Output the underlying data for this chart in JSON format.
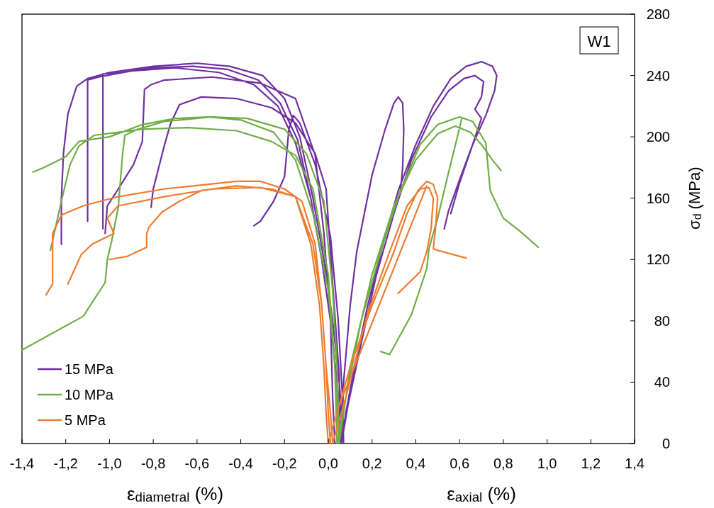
{
  "chart_data": {
    "type": "line",
    "xlabel": "ε$_{diametral}$ (%)",
    "ylabel": "σ$_{d}$ (MPa)",
    "annotations": [
      "W1",
      "ε$_{axial}$ (%)"
    ],
    "xlim": [
      -1.4,
      1.4
    ],
    "ylim": [
      0,
      280
    ],
    "xticks": [
      {
        "value": -1.4,
        "label": "-1,4"
      },
      {
        "value": -1.2,
        "label": "-1,2"
      },
      {
        "value": -1.0,
        "label": "-1,0"
      },
      {
        "value": -0.8,
        "label": "-0,8"
      },
      {
        "value": -0.6,
        "label": "-0,6"
      },
      {
        "value": -0.4,
        "label": "-0,4"
      },
      {
        "value": -0.2,
        "label": "-0,2"
      },
      {
        "value": 0,
        "label": "0,0"
      },
      {
        "value": 0.2,
        "label": "0,2"
      },
      {
        "value": 0.4,
        "label": "0,4"
      },
      {
        "value": 0.6,
        "label": "0,6"
      },
      {
        "value": 0.8,
        "label": "0,8"
      },
      {
        "value": 1.0,
        "label": "1,0"
      },
      {
        "value": 1.2,
        "label": "1,2"
      },
      {
        "value": 1.4,
        "label": "1,4"
      }
    ],
    "yticks": [
      0,
      40,
      80,
      120,
      160,
      200,
      240,
      280
    ],
    "legend": "bottom left",
    "line_style": "solid",
    "series": [
      {
        "name": "15 MPa",
        "color": "#7030a0",
        "x": [
          0.07,
          0.05,
          0.02,
          -0.02,
          -0.07,
          -0.13,
          -0.2,
          -0.3,
          -0.45,
          -0.6,
          -0.8,
          -1.0,
          -1.1,
          -1.15,
          -1.19,
          -1.21,
          -1.22,
          -1.22,
          null,
          0.06,
          0.04,
          0.01,
          -0.03,
          -0.08,
          -0.14,
          -0.22,
          -0.32,
          -0.46,
          -0.62,
          -0.8,
          -0.95,
          -1.03,
          -1.03,
          null,
          0.06,
          0.04,
          0.01,
          -0.03,
          -0.08,
          -0.15,
          -0.23,
          -0.34,
          -0.5,
          -0.7,
          -0.9,
          -1.05,
          -1.1,
          -1.1,
          null,
          0.03,
          0.02,
          0.01,
          -0.02,
          -0.06,
          -0.15,
          -0.31,
          -0.53,
          -0.75,
          -0.81,
          -0.84,
          -0.85,
          -0.89,
          -0.96,
          -1.01,
          -1.02,
          null,
          0.055,
          0.05,
          0.02,
          -0.01,
          -0.06,
          -0.15,
          -0.26,
          -0.42,
          -0.58,
          -0.68,
          -0.72,
          -0.75,
          -0.8,
          -0.81,
          null,
          0.07,
          0.065,
          0.045,
          0.01,
          -0.06,
          -0.13,
          -0.16,
          -0.18,
          -0.2,
          -0.25,
          -0.31,
          -0.34,
          null,
          0.06,
          0.07,
          0.1,
          0.13,
          0.2,
          0.26,
          0.3,
          0.32,
          0.34,
          0.345,
          0.34,
          0.33,
          0.31,
          null,
          0.06,
          0.08,
          0.12,
          0.18,
          0.25,
          0.32,
          0.4,
          0.48,
          0.56,
          0.63,
          0.7,
          0.75,
          0.77,
          0.76,
          0.72,
          0.66,
          0.6,
          0.55,
          0.53,
          null,
          0.06,
          0.09,
          0.15,
          0.22,
          0.3,
          0.38,
          0.47,
          0.55,
          0.62,
          0.67,
          0.71,
          0.7,
          0.67,
          0.7,
          0.66,
          0.6,
          0.56
        ],
        "values": [
          0,
          40,
          80,
          120,
          160,
          200,
          225,
          240,
          246,
          248,
          246,
          242,
          238,
          233,
          215,
          190,
          160,
          130,
          null,
          0,
          40,
          80,
          120,
          160,
          198,
          222,
          237,
          244,
          246,
          245,
          242,
          241,
          140,
          null,
          0,
          40,
          80,
          120,
          160,
          196,
          220,
          234,
          242,
          245,
          243,
          239,
          237,
          145,
          null,
          0,
          30,
          81,
          137,
          188,
          225,
          235,
          239,
          237,
          234,
          231,
          197,
          182,
          166,
          155,
          137,
          null,
          0,
          44,
          104,
          166,
          189,
          209,
          219,
          225,
          226,
          221,
          209,
          194,
          166,
          154,
          null,
          0,
          30,
          81,
          135,
          182,
          209,
          214,
          205,
          174,
          158,
          145,
          142,
          null,
          0,
          40,
          90,
          125,
          175,
          205,
          222,
          226,
          222,
          205,
          180,
          165,
          156,
          null,
          0,
          20,
          50,
          90,
          130,
          165,
          195,
          220,
          238,
          246,
          249,
          246,
          240,
          230,
          214,
          195,
          172,
          152,
          140,
          null,
          0,
          25,
          65,
          110,
          150,
          185,
          213,
          230,
          238,
          240,
          236,
          226,
          218,
          212,
          195,
          170,
          150
        ]
      },
      {
        "name": "10 MPa",
        "color": "#70ad47",
        "x": [
          0.05,
          0.03,
          0.0,
          -0.07,
          -0.15,
          -0.25,
          -0.4,
          -0.55,
          -0.7,
          -0.85,
          -1.0,
          -1.14,
          -1.2,
          -1.3,
          -1.35,
          null,
          0.04,
          0.03,
          0.0,
          -0.07,
          -0.15,
          -0.26,
          -0.42,
          -0.64,
          -0.85,
          -1.07,
          -1.14,
          -1.18,
          -1.22,
          -1.27,
          null,
          0.05,
          0.04,
          0.02,
          -0.02,
          -0.1,
          -0.2,
          -0.37,
          -0.53,
          -0.75,
          -0.87,
          -0.93,
          -0.94,
          -0.96,
          -0.99,
          -1.01,
          -1.02,
          -1.12,
          -1.4,
          null,
          0.04,
          0.08,
          0.15,
          0.25,
          0.33,
          0.42,
          0.5,
          0.6,
          0.66,
          0.72,
          0.74,
          0.8,
          0.88,
          0.96,
          null,
          0.05,
          0.1,
          0.2,
          0.3,
          0.4,
          0.5,
          0.58,
          0.65,
          0.7,
          0.75,
          0.79,
          null,
          0.24,
          0.28,
          0.38,
          0.45,
          0.46,
          0.5,
          0.55,
          0.59,
          0.61
        ],
        "values": [
          0,
          50,
          100,
          150,
          185,
          203,
          211,
          213,
          212,
          208,
          200,
          197,
          187,
          180,
          177,
          null,
          0,
          50,
          110,
          166,
          188,
          197,
          204,
          206,
          205,
          201,
          194,
          182,
          158,
          126,
          null,
          0,
          50,
          100,
          158,
          189,
          205,
          212,
          213,
          210,
          205,
          201,
          189,
          154,
          132,
          120,
          105,
          83,
          61,
          null,
          0,
          30,
          80,
          130,
          165,
          195,
          208,
          213,
          210,
          196,
          165,
          147,
          138,
          128,
          null,
          0,
          50,
          110,
          155,
          185,
          202,
          207,
          203,
          195,
          185,
          178,
          null,
          60,
          58,
          84,
          114,
          127,
          147,
          177,
          200,
          212
        ]
      },
      {
        "name": "5 MPa",
        "color": "#ed7d31",
        "x": [
          0.01,
          0.0,
          -0.01,
          -0.03,
          -0.06,
          -0.12,
          -0.2,
          -0.31,
          -0.42,
          -0.75,
          -0.96,
          -1.12,
          -1.22,
          -1.26,
          -1.26,
          -1.26,
          -1.29,
          null,
          0.0,
          -0.01,
          -0.02,
          -0.04,
          -0.08,
          -0.15,
          -0.31,
          -0.53,
          -0.75,
          -0.96,
          -1.01,
          -0.98,
          -1.08,
          -1.13,
          -1.19,
          null,
          0.02,
          0.01,
          -0.01,
          -0.03,
          -0.07,
          -0.15,
          -0.26,
          -0.42,
          -0.58,
          -0.68,
          -0.76,
          -0.82,
          -0.83,
          -0.83,
          -0.92,
          -1.0,
          null,
          0.0,
          0.03,
          0.1,
          0.2,
          0.3,
          0.36,
          0.41,
          0.45,
          0.48,
          0.5,
          0.49,
          0.48,
          0.5,
          0.55,
          0.63,
          null,
          0.02,
          0.08,
          0.18,
          0.28,
          0.36,
          0.42,
          0.46,
          0.48,
          0.47,
          0.45,
          0.42,
          0.37,
          0.32,
          null,
          0.05,
          0.45
        ],
        "values": [
          0,
          20,
          50,
          90,
          130,
          158,
          166,
          171,
          171,
          166,
          161,
          155,
          149,
          137,
          129,
          104,
          97,
          null,
          0,
          20,
          50,
          90,
          130,
          161,
          167,
          166,
          161,
          155,
          147,
          137,
          130,
          123,
          104,
          null,
          0,
          20,
          50,
          90,
          130,
          161,
          166,
          168,
          165,
          158,
          151,
          141,
          137,
          128,
          122,
          120,
          null,
          0,
          15,
          50,
          90,
          125,
          150,
          165,
          171,
          169,
          160,
          140,
          127,
          126,
          124,
          121,
          null,
          0,
          30,
          85,
          125,
          155,
          166,
          167,
          160,
          140,
          125,
          112,
          105,
          98,
          null,
          25,
          168
        ]
      }
    ]
  }
}
